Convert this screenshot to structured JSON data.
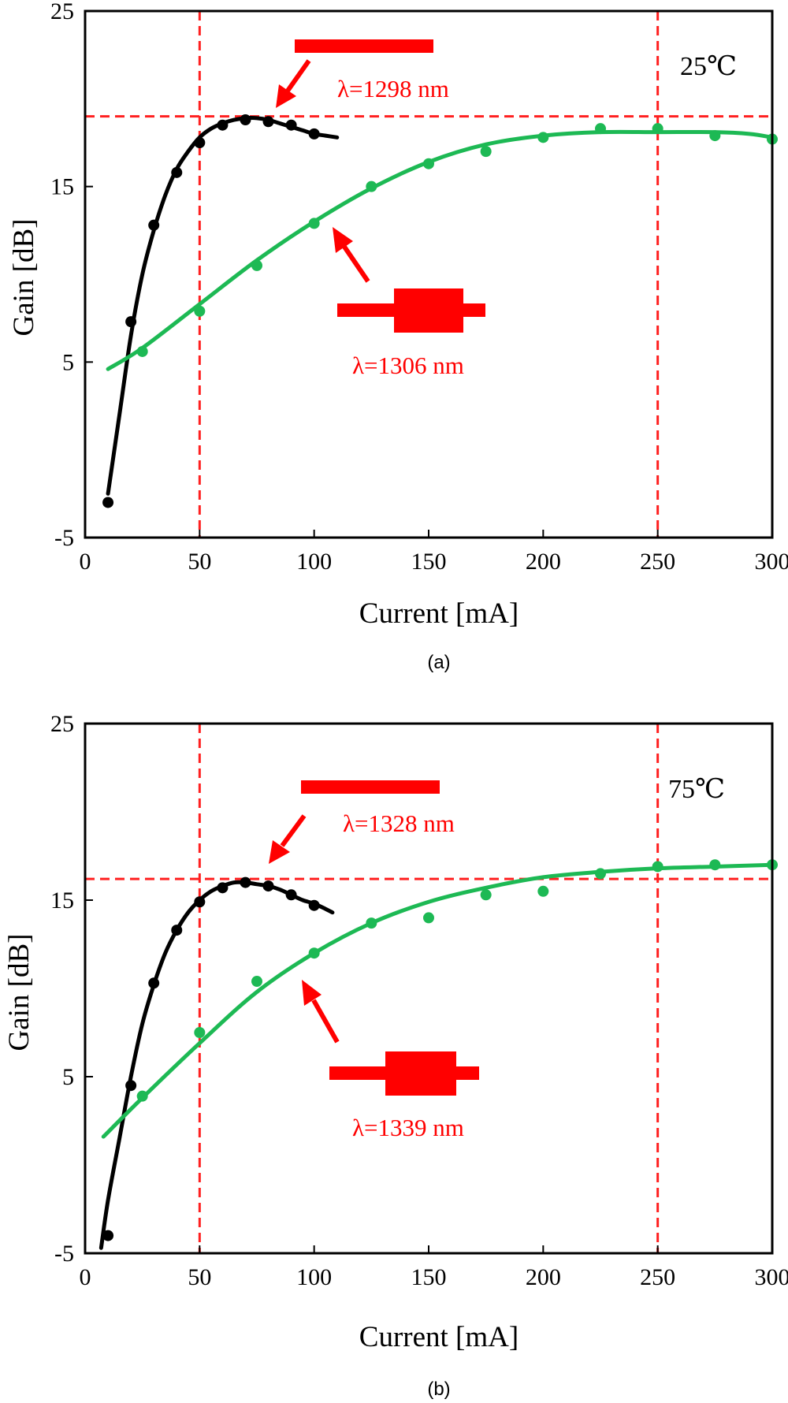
{
  "chart_data": [
    {
      "type": "scatter",
      "panel_label": "(a)",
      "temperature_label": "25℃",
      "xlabel": "Current [mA]",
      "ylabel": "Gain [dB]",
      "xlim": [
        0,
        300
      ],
      "ylim": [
        -5,
        25
      ],
      "xticks": [
        0,
        50,
        100,
        150,
        200,
        250,
        300
      ],
      "yticks": [
        -5,
        5,
        15,
        25
      ],
      "xtick_labels": [
        "0",
        "50",
        "100",
        "150",
        "200",
        "250",
        "300"
      ],
      "ytick_labels": [
        "-5",
        "5",
        "15",
        "25"
      ],
      "reference_lines": {
        "vertical": [
          50,
          250
        ],
        "horizontal": [
          19
        ]
      },
      "series": [
        {
          "name": "λ=1298 nm",
          "color": "#000000",
          "points": {
            "x": [
              10,
              20,
              30,
              40,
              50,
              60,
              70,
              80,
              90,
              100
            ],
            "y": [
              -3.0,
              7.3,
              12.8,
              15.8,
              17.5,
              18.5,
              18.8,
              18.7,
              18.5,
              18.0
            ]
          },
          "fit": {
            "x": [
              10,
              15,
              20,
              25,
              30,
              35,
              40,
              45,
              50,
              55,
              60,
              65,
              70,
              75,
              80,
              85,
              90,
              95,
              100,
              105,
              110
            ],
            "y": [
              -2.5,
              2.0,
              6.5,
              10.0,
              12.5,
              14.5,
              16.0,
              17.0,
              17.8,
              18.3,
              18.6,
              18.8,
              18.9,
              18.9,
              18.8,
              18.6,
              18.4,
              18.2,
              18.0,
              17.9,
              17.8
            ]
          }
        },
        {
          "name": "λ=1306 nm",
          "color": "#1db954",
          "points": {
            "x": [
              25,
              50,
              75,
              100,
              125,
              150,
              175,
              200,
              225,
              250,
              275,
              300
            ],
            "y": [
              5.6,
              7.9,
              10.5,
              12.9,
              15.0,
              16.3,
              17.0,
              17.8,
              18.3,
              18.3,
              17.9,
              17.7
            ]
          },
          "fit": {
            "x": [
              10,
              25,
              50,
              75,
              100,
              125,
              150,
              175,
              200,
              225,
              250,
              275,
              290,
              300
            ],
            "y": [
              4.6,
              5.8,
              8.3,
              10.8,
              13.0,
              14.9,
              16.4,
              17.4,
              17.9,
              18.1,
              18.1,
              18.1,
              18.0,
              17.8
            ]
          }
        }
      ],
      "annotations": [
        {
          "text": "λ=1298 nm",
          "color": "#ff0000"
        },
        {
          "text": "λ=1306 nm",
          "color": "#ff0000"
        }
      ]
    },
    {
      "type": "scatter",
      "panel_label": "(b)",
      "temperature_label": "75℃",
      "xlabel": "Current [mA]",
      "ylabel": "Gain [dB]",
      "xlim": [
        0,
        300
      ],
      "ylim": [
        -5,
        25
      ],
      "xticks": [
        0,
        50,
        100,
        150,
        200,
        250,
        300
      ],
      "yticks": [
        -5,
        5,
        15,
        25
      ],
      "xtick_labels": [
        "0",
        "50",
        "100",
        "150",
        "200",
        "250",
        "300"
      ],
      "ytick_labels": [
        "-5",
        "5",
        "15",
        "25"
      ],
      "reference_lines": {
        "vertical": [
          50,
          250
        ],
        "horizontal": [
          16.2
        ]
      },
      "series": [
        {
          "name": "λ=1328 nm",
          "color": "#000000",
          "points": {
            "x": [
              10,
              20,
              30,
              40,
              50,
              60,
              70,
              80,
              90,
              100
            ],
            "y": [
              -4.0,
              4.5,
              10.3,
              13.3,
              14.9,
              15.7,
              16.0,
              15.8,
              15.3,
              14.7
            ]
          },
          "fit": {
            "x": [
              7,
              10,
              15,
              20,
              25,
              30,
              35,
              40,
              45,
              50,
              55,
              60,
              65,
              70,
              75,
              80,
              85,
              90,
              95,
              100,
              105,
              108
            ],
            "y": [
              -4.7,
              -2.0,
              1.5,
              5.0,
              8.0,
              10.2,
              12.0,
              13.3,
              14.3,
              15.0,
              15.5,
              15.8,
              16.0,
              16.0,
              15.9,
              15.8,
              15.6,
              15.3,
              15.0,
              14.8,
              14.5,
              14.3
            ]
          }
        },
        {
          "name": "λ=1339 nm",
          "color": "#1db954",
          "points": {
            "x": [
              25,
              50,
              75,
              100,
              125,
              150,
              175,
              200,
              225,
              250,
              275,
              300
            ],
            "y": [
              3.9,
              7.5,
              10.4,
              12.0,
              13.7,
              14.0,
              15.3,
              15.5,
              16.5,
              16.9,
              17.0,
              17.0
            ]
          },
          "fit": {
            "x": [
              8,
              25,
              50,
              75,
              100,
              125,
              150,
              175,
              200,
              225,
              250,
              275,
              300
            ],
            "y": [
              1.6,
              3.8,
              6.9,
              9.8,
              12.0,
              13.7,
              14.9,
              15.7,
              16.3,
              16.6,
              16.8,
              16.9,
              17.0
            ]
          }
        }
      ],
      "annotations": [
        {
          "text": "λ=1328 nm",
          "color": "#ff0000"
        },
        {
          "text": "λ=1339 nm",
          "color": "#ff0000"
        }
      ]
    }
  ],
  "colors": {
    "reference_line": "#ff2020",
    "annotation": "#ff0000",
    "axes": "#000000"
  }
}
